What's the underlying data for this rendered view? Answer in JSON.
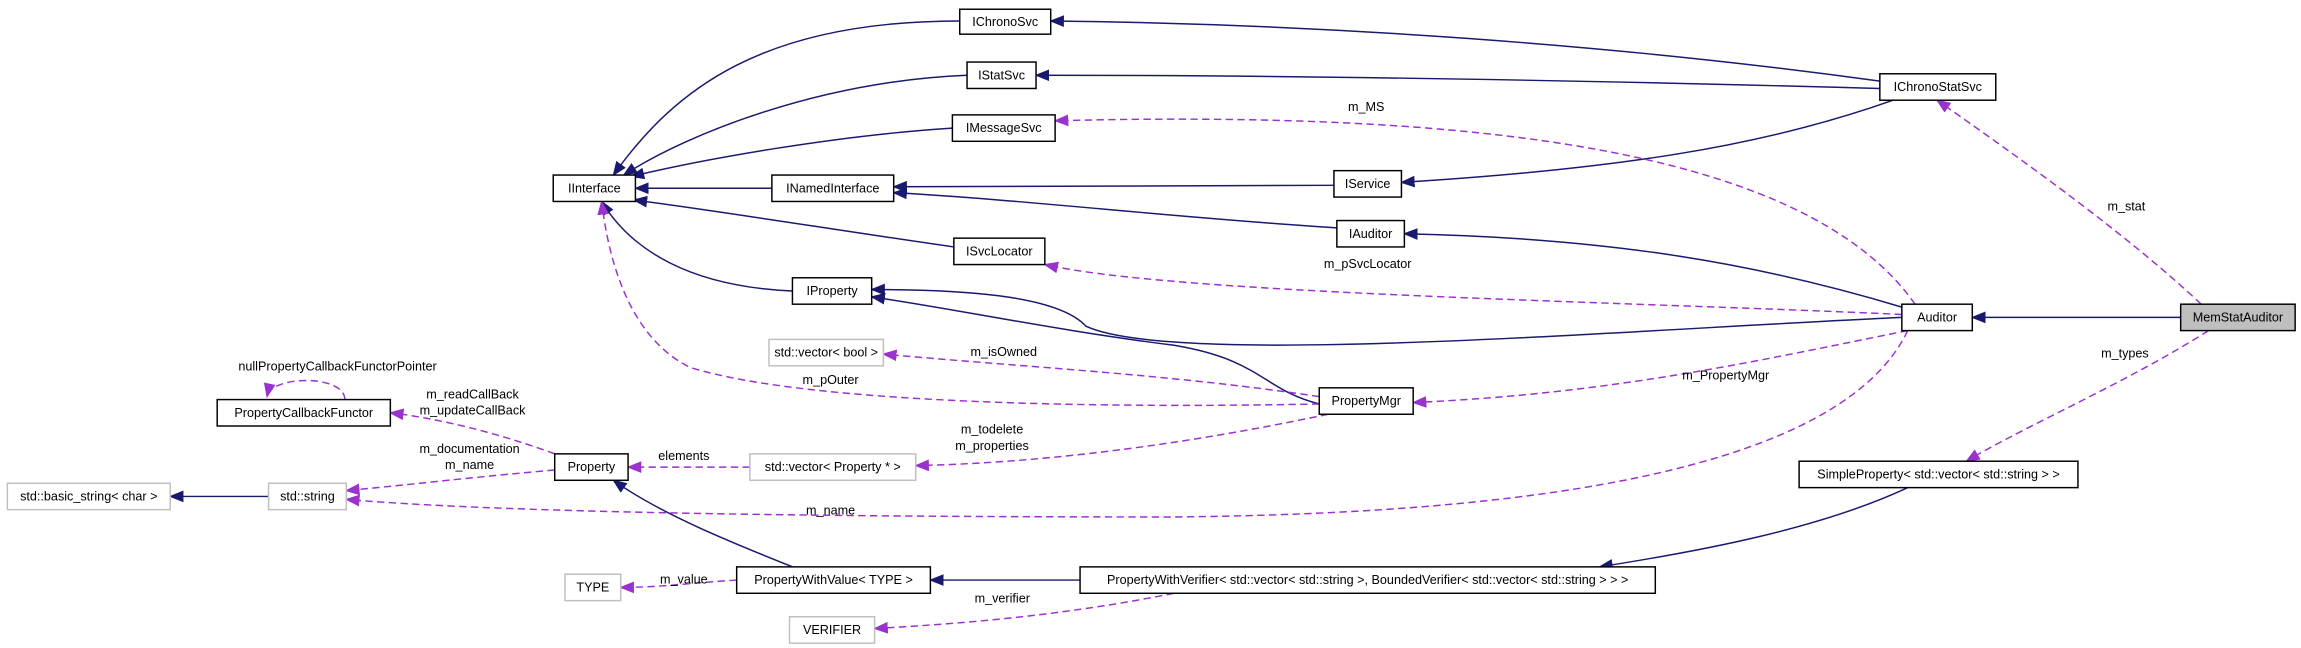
{
  "nodes": [
    {
      "label": "IChronoSvc"
    },
    {
      "label": "IStatSvc"
    },
    {
      "label": "IMessageSvc"
    },
    {
      "label": "IInterface"
    },
    {
      "label": "INamedInterface"
    },
    {
      "label": "IService"
    },
    {
      "label": "IChronoStatSvc"
    },
    {
      "label": "IAuditor"
    },
    {
      "label": "ISvcLocator"
    },
    {
      "label": "IProperty"
    },
    {
      "label": "Auditor"
    },
    {
      "label": "MemStatAuditor"
    },
    {
      "label": "std::vector< bool >"
    },
    {
      "label": "PropertyMgr"
    },
    {
      "label": "PropertyCallbackFunctor"
    },
    {
      "label": "Property"
    },
    {
      "label": "std::vector< Property * >"
    },
    {
      "label": "std::basic_string< char >"
    },
    {
      "label": "std::string"
    },
    {
      "label": "SimpleProperty< std::vector< std::string > >"
    },
    {
      "label": "TYPE"
    },
    {
      "label": "PropertyWithValue< TYPE >"
    },
    {
      "label": "PropertyWithVerifier< std::vector< std::string >, BoundedVerifier< std::vector< std::string > > >"
    },
    {
      "label": "VERIFIER"
    }
  ],
  "edge_labels": [
    "m_MS",
    "m_stat",
    "m_pSvcLocator",
    "m_types",
    "m_isOwned",
    "m_PropertyMgr",
    "nullPropertyCallbackFunctorPointer",
    "m_pOuter",
    "m_readCallBack",
    "m_updateCallBack",
    "m_todelete",
    "m_properties",
    "m_documentation",
    "m_name",
    "elements",
    "m_name",
    "m_value",
    "m_verifier"
  ]
}
